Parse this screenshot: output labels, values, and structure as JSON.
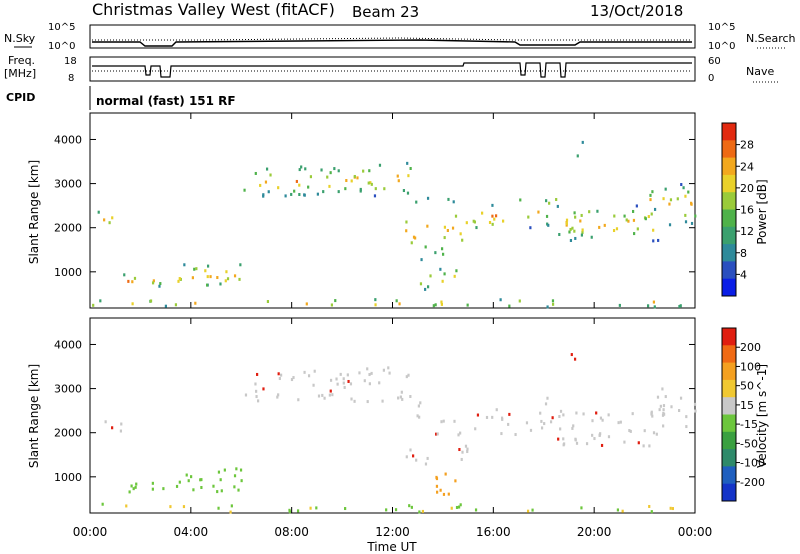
{
  "header": {
    "title": "Christmas Valley West (fitACF)",
    "beam": "Beam 23",
    "date": "13/Oct/2018"
  },
  "top_panels": {
    "left_labels": {
      "nsky": "N.Sky",
      "freq": "Freq.",
      "freq_unit": "[MHz]",
      "cpid": "CPID"
    },
    "right_labels": {
      "nsearch": "N.Search",
      "nave": "Nave"
    },
    "noise_left_ticks": [
      "10^5",
      "10^0"
    ],
    "noise_right_ticks": [
      "10^5",
      "10^0"
    ],
    "freq_left_ticks": [
      "18",
      "8"
    ],
    "nave_right_ticks": [
      "60",
      "0"
    ],
    "cpid_text": "normal (fast) 151 RF"
  },
  "chart_data": [
    {
      "type": "heatmap",
      "name": "power",
      "ylabel": "Slant Range [km]",
      "yticks": [
        1000,
        2000,
        3000,
        4000
      ],
      "ylim": [
        180,
        4600
      ],
      "xlim_hours": [
        0,
        24
      ],
      "colorbar": {
        "label": "Power [dB]",
        "ticks": [
          4,
          8,
          12,
          16,
          20,
          24,
          28
        ],
        "colors": [
          "#0a1ee6",
          "#2a4fbf",
          "#2e8a9a",
          "#3aa06e",
          "#4fb24a",
          "#9acb3a",
          "#e9d12a",
          "#f2a81e",
          "#ee6a14",
          "#e22a10"
        ]
      }
    },
    {
      "type": "heatmap",
      "name": "velocity",
      "ylabel": "Slant Range [km]",
      "yticks": [
        1000,
        2000,
        3000,
        4000
      ],
      "ylim": [
        180,
        4600
      ],
      "xlim_hours": [
        0,
        24
      ],
      "colorbar": {
        "label": "Velocity [m s^-1]",
        "ticks": [
          "200",
          "100",
          "50",
          "15",
          "-15",
          "-50",
          "-100",
          "-200"
        ],
        "colors": [
          "#1434c8",
          "#1f5fbf",
          "#2e8a6a",
          "#3aa040",
          "#6cc63c",
          "#c8c8c8",
          "#f0c832",
          "#f4a020",
          "#f06a14",
          "#e01e10"
        ]
      }
    }
  ],
  "xaxis": {
    "ticks": [
      "00:00",
      "04:00",
      "08:00",
      "12:00",
      "16:00",
      "20:00",
      "00:00"
    ],
    "label": "Time UT"
  },
  "colors": {
    "axis": "#000000",
    "grey_scatter": "#c4c4c4",
    "green_scatter": "#62c23a",
    "red": "#e01e10",
    "blue": "#1f4fbf"
  }
}
